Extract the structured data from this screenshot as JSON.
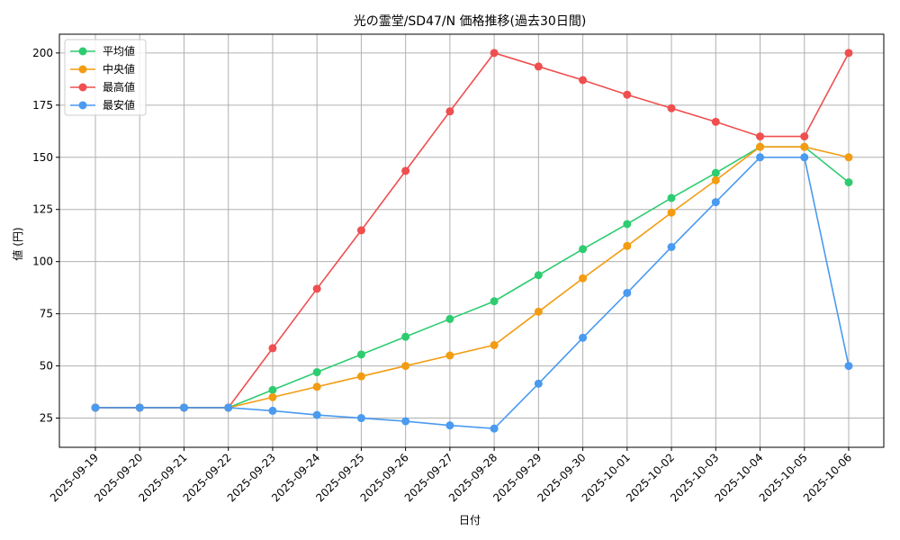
{
  "chart_data": {
    "type": "line",
    "title": "光の霊堂/SD47/N 価格推移(過去30日間)",
    "xlabel": "日付",
    "ylabel": "値 (円)",
    "ylim": [
      11,
      209
    ],
    "yticks": [
      25,
      50,
      75,
      100,
      125,
      150,
      175,
      200
    ],
    "grid": true,
    "legend_position": "top-left",
    "categories": [
      "2025-09-19",
      "2025-09-20",
      "2025-09-21",
      "2025-09-22",
      "2025-09-23",
      "2025-09-24",
      "2025-09-25",
      "2025-09-26",
      "2025-09-27",
      "2025-09-28",
      "2025-09-29",
      "2025-09-30",
      "2025-10-01",
      "2025-10-02",
      "2025-10-03",
      "2025-10-04",
      "2025-10-05",
      "2025-10-06"
    ],
    "series": [
      {
        "name": "平均値",
        "color": "#2ecc71",
        "values": [
          30,
          30,
          30,
          30,
          38.5,
          47,
          55.5,
          64,
          72.5,
          81,
          93.5,
          106,
          118,
          130.5,
          142.5,
          155,
          155,
          138
        ]
      },
      {
        "name": "中央値",
        "color": "#f39c12",
        "values": [
          30,
          30,
          30,
          30,
          35,
          40,
          45,
          50,
          55,
          60,
          76,
          92,
          107.5,
          123.5,
          139,
          155,
          155,
          150
        ]
      },
      {
        "name": "最高値",
        "color": "#ef4f4f",
        "values": [
          30,
          30,
          30,
          30,
          58.5,
          87,
          115,
          143.5,
          172,
          200,
          193.5,
          187,
          180,
          173.5,
          167,
          160,
          160,
          200
        ]
      },
      {
        "name": "最安値",
        "color": "#4a9af0",
        "values": [
          30,
          30,
          30,
          30,
          28.5,
          26.5,
          25,
          23.5,
          21.5,
          20,
          41.5,
          63.5,
          85,
          107,
          128.5,
          150,
          150,
          50
        ]
      }
    ]
  }
}
